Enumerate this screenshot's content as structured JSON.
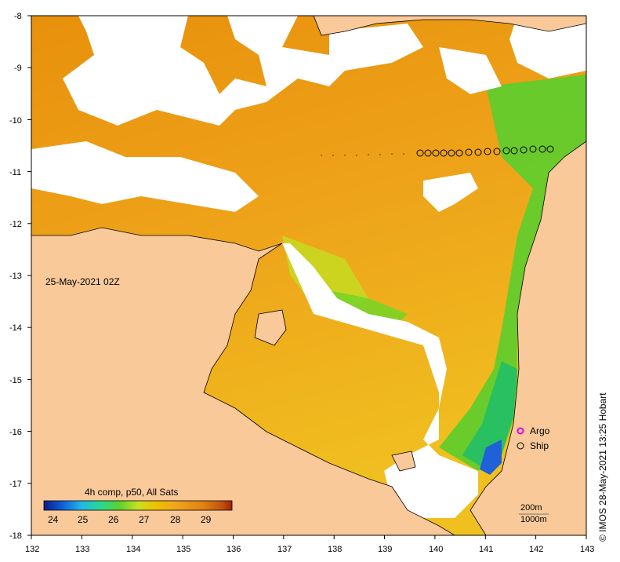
{
  "map": {
    "date_label": "25-May-2021 02Z",
    "x_ticks": [
      "132",
      "133",
      "134",
      "135",
      "136",
      "137",
      "138",
      "139",
      "140",
      "141",
      "142",
      "143"
    ],
    "y_ticks": [
      "-8",
      "-9",
      "-10",
      "-11",
      "-12",
      "-13",
      "-14",
      "-15",
      "-16",
      "-17",
      "-18"
    ],
    "colorbar": {
      "title": "4h comp, p50, All Sats",
      "ticks": [
        "24",
        "25",
        "26",
        "27",
        "28",
        "29"
      ],
      "colors": [
        "#0a1a8a",
        "#1060d8",
        "#22b8e8",
        "#28d890",
        "#5ad230",
        "#c8e020",
        "#f0c000",
        "#f0a020",
        "#e08010",
        "#c05010",
        "#a02008"
      ]
    },
    "legend": {
      "argo": "Argo",
      "ship": "Ship"
    },
    "scale": {
      "line1": "200m",
      "line2": "1000m"
    },
    "credit": "© IMOS 28-May-2021 13:25 Hobart",
    "colors": {
      "land": "#f9c99a",
      "cloud": "#ffffff",
      "sst_warm": "#e8900c",
      "sst_mid": "#f0a818",
      "sst_cool": "#62cc2c",
      "sst_cold": "#2060d8",
      "argo": "#e000e0"
    }
  }
}
